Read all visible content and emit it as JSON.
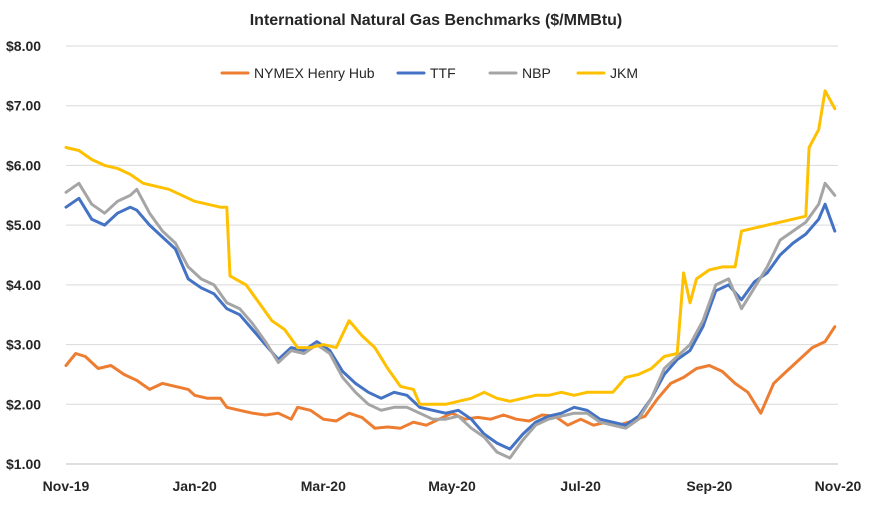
{
  "chart_data": {
    "type": "line",
    "title": "International Natural Gas Benchmarks ($/MMBtu)",
    "xlabel": "",
    "ylabel": "",
    "ylim": [
      1.0,
      8.0
    ],
    "yticks": [
      "$1.00",
      "$2.00",
      "$3.00",
      "$4.00",
      "$5.00",
      "$6.00",
      "$7.00",
      "$8.00"
    ],
    "xlim": [
      0,
      12
    ],
    "xticks": [
      {
        "x": 0,
        "label": "Nov-19"
      },
      {
        "x": 2,
        "label": "Jan-20"
      },
      {
        "x": 4,
        "label": "Mar-20"
      },
      {
        "x": 6,
        "label": "May-20"
      },
      {
        "x": 8,
        "label": "Jul-20"
      },
      {
        "x": 10,
        "label": "Sep-20"
      },
      {
        "x": 12,
        "label": "Nov-20"
      }
    ],
    "grid": true,
    "legend_position": "top",
    "series": [
      {
        "name": "NYMEX Henry Hub",
        "color": "#ed7d31",
        "points": [
          [
            0,
            2.65
          ],
          [
            0.15,
            2.85
          ],
          [
            0.3,
            2.8
          ],
          [
            0.5,
            2.6
          ],
          [
            0.7,
            2.65
          ],
          [
            0.9,
            2.5
          ],
          [
            1.1,
            2.4
          ],
          [
            1.3,
            2.25
          ],
          [
            1.5,
            2.35
          ],
          [
            1.7,
            2.3
          ],
          [
            1.9,
            2.25
          ],
          [
            2.0,
            2.15
          ],
          [
            2.2,
            2.1
          ],
          [
            2.4,
            2.1
          ],
          [
            2.5,
            1.95
          ],
          [
            2.7,
            1.9
          ],
          [
            2.9,
            1.85
          ],
          [
            3.1,
            1.82
          ],
          [
            3.3,
            1.85
          ],
          [
            3.5,
            1.75
          ],
          [
            3.6,
            1.95
          ],
          [
            3.8,
            1.9
          ],
          [
            4.0,
            1.75
          ],
          [
            4.2,
            1.72
          ],
          [
            4.4,
            1.85
          ],
          [
            4.6,
            1.78
          ],
          [
            4.8,
            1.6
          ],
          [
            5.0,
            1.62
          ],
          [
            5.2,
            1.6
          ],
          [
            5.4,
            1.7
          ],
          [
            5.6,
            1.65
          ],
          [
            5.8,
            1.75
          ],
          [
            6.0,
            1.85
          ],
          [
            6.2,
            1.75
          ],
          [
            6.4,
            1.78
          ],
          [
            6.6,
            1.75
          ],
          [
            6.8,
            1.82
          ],
          [
            7.0,
            1.75
          ],
          [
            7.2,
            1.72
          ],
          [
            7.4,
            1.82
          ],
          [
            7.6,
            1.8
          ],
          [
            7.8,
            1.65
          ],
          [
            8.0,
            1.75
          ],
          [
            8.2,
            1.65
          ],
          [
            8.4,
            1.7
          ],
          [
            8.6,
            1.65
          ],
          [
            8.8,
            1.72
          ],
          [
            9.0,
            1.8
          ],
          [
            9.2,
            2.1
          ],
          [
            9.4,
            2.35
          ],
          [
            9.6,
            2.45
          ],
          [
            9.8,
            2.6
          ],
          [
            10.0,
            2.65
          ],
          [
            10.2,
            2.55
          ],
          [
            10.4,
            2.35
          ],
          [
            10.6,
            2.2
          ],
          [
            10.8,
            1.85
          ],
          [
            11.0,
            2.35
          ],
          [
            11.2,
            2.55
          ],
          [
            11.4,
            2.75
          ],
          [
            11.6,
            2.95
          ],
          [
            11.8,
            3.05
          ],
          [
            11.95,
            3.3
          ]
        ]
      },
      {
        "name": "TTF",
        "color": "#4472c4",
        "points": [
          [
            0,
            5.3
          ],
          [
            0.2,
            5.45
          ],
          [
            0.4,
            5.1
          ],
          [
            0.6,
            5.0
          ],
          [
            0.8,
            5.2
          ],
          [
            1.0,
            5.3
          ],
          [
            1.1,
            5.25
          ],
          [
            1.3,
            5.0
          ],
          [
            1.5,
            4.8
          ],
          [
            1.7,
            4.6
          ],
          [
            1.9,
            4.1
          ],
          [
            2.1,
            3.95
          ],
          [
            2.3,
            3.85
          ],
          [
            2.5,
            3.6
          ],
          [
            2.7,
            3.5
          ],
          [
            2.9,
            3.25
          ],
          [
            3.1,
            3.0
          ],
          [
            3.3,
            2.75
          ],
          [
            3.5,
            2.95
          ],
          [
            3.7,
            2.9
          ],
          [
            3.9,
            3.05
          ],
          [
            4.1,
            2.9
          ],
          [
            4.3,
            2.55
          ],
          [
            4.5,
            2.35
          ],
          [
            4.7,
            2.2
          ],
          [
            4.9,
            2.1
          ],
          [
            5.1,
            2.2
          ],
          [
            5.3,
            2.15
          ],
          [
            5.5,
            1.95
          ],
          [
            5.7,
            1.9
          ],
          [
            5.9,
            1.85
          ],
          [
            6.1,
            1.9
          ],
          [
            6.3,
            1.75
          ],
          [
            6.5,
            1.5
          ],
          [
            6.7,
            1.35
          ],
          [
            6.9,
            1.25
          ],
          [
            7.1,
            1.5
          ],
          [
            7.3,
            1.7
          ],
          [
            7.5,
            1.8
          ],
          [
            7.7,
            1.85
          ],
          [
            7.9,
            1.95
          ],
          [
            8.1,
            1.9
          ],
          [
            8.3,
            1.75
          ],
          [
            8.5,
            1.7
          ],
          [
            8.7,
            1.65
          ],
          [
            8.9,
            1.8
          ],
          [
            9.1,
            2.1
          ],
          [
            9.3,
            2.5
          ],
          [
            9.5,
            2.75
          ],
          [
            9.7,
            2.9
          ],
          [
            9.9,
            3.3
          ],
          [
            10.1,
            3.9
          ],
          [
            10.3,
            4.0
          ],
          [
            10.5,
            3.75
          ],
          [
            10.7,
            4.05
          ],
          [
            10.9,
            4.2
          ],
          [
            11.1,
            4.5
          ],
          [
            11.3,
            4.7
          ],
          [
            11.5,
            4.85
          ],
          [
            11.7,
            5.1
          ],
          [
            11.8,
            5.35
          ],
          [
            11.95,
            4.9
          ]
        ]
      },
      {
        "name": "NBP",
        "color": "#a5a5a5",
        "points": [
          [
            0,
            5.55
          ],
          [
            0.2,
            5.7
          ],
          [
            0.4,
            5.35
          ],
          [
            0.6,
            5.2
          ],
          [
            0.8,
            5.4
          ],
          [
            1.0,
            5.5
          ],
          [
            1.1,
            5.6
          ],
          [
            1.3,
            5.2
          ],
          [
            1.5,
            4.9
          ],
          [
            1.7,
            4.7
          ],
          [
            1.9,
            4.3
          ],
          [
            2.1,
            4.1
          ],
          [
            2.3,
            4.0
          ],
          [
            2.5,
            3.7
          ],
          [
            2.7,
            3.6
          ],
          [
            2.9,
            3.35
          ],
          [
            3.1,
            3.05
          ],
          [
            3.3,
            2.7
          ],
          [
            3.5,
            2.9
          ],
          [
            3.7,
            2.85
          ],
          [
            3.9,
            3.0
          ],
          [
            4.1,
            2.85
          ],
          [
            4.3,
            2.45
          ],
          [
            4.5,
            2.2
          ],
          [
            4.7,
            2.0
          ],
          [
            4.9,
            1.9
          ],
          [
            5.1,
            1.95
          ],
          [
            5.3,
            1.95
          ],
          [
            5.5,
            1.85
          ],
          [
            5.7,
            1.75
          ],
          [
            5.9,
            1.75
          ],
          [
            6.1,
            1.8
          ],
          [
            6.3,
            1.6
          ],
          [
            6.5,
            1.45
          ],
          [
            6.7,
            1.2
          ],
          [
            6.9,
            1.1
          ],
          [
            7.1,
            1.4
          ],
          [
            7.3,
            1.65
          ],
          [
            7.5,
            1.75
          ],
          [
            7.7,
            1.8
          ],
          [
            7.9,
            1.85
          ],
          [
            8.1,
            1.85
          ],
          [
            8.3,
            1.7
          ],
          [
            8.5,
            1.65
          ],
          [
            8.7,
            1.6
          ],
          [
            8.9,
            1.75
          ],
          [
            9.1,
            2.1
          ],
          [
            9.3,
            2.6
          ],
          [
            9.5,
            2.8
          ],
          [
            9.7,
            3.0
          ],
          [
            9.9,
            3.4
          ],
          [
            10.1,
            4.0
          ],
          [
            10.3,
            4.1
          ],
          [
            10.5,
            3.6
          ],
          [
            10.7,
            3.95
          ],
          [
            10.9,
            4.3
          ],
          [
            11.1,
            4.75
          ],
          [
            11.3,
            4.9
          ],
          [
            11.5,
            5.05
          ],
          [
            11.7,
            5.35
          ],
          [
            11.8,
            5.7
          ],
          [
            11.95,
            5.5
          ]
        ]
      },
      {
        "name": "JKM",
        "color": "#ffc000",
        "points": [
          [
            0,
            6.3
          ],
          [
            0.2,
            6.25
          ],
          [
            0.4,
            6.1
          ],
          [
            0.6,
            6.0
          ],
          [
            0.8,
            5.95
          ],
          [
            1.0,
            5.85
          ],
          [
            1.2,
            5.7
          ],
          [
            1.4,
            5.65
          ],
          [
            1.6,
            5.6
          ],
          [
            1.8,
            5.5
          ],
          [
            2.0,
            5.4
          ],
          [
            2.2,
            5.35
          ],
          [
            2.4,
            5.3
          ],
          [
            2.5,
            5.3
          ],
          [
            2.55,
            4.15
          ],
          [
            2.8,
            4.0
          ],
          [
            3.0,
            3.7
          ],
          [
            3.2,
            3.4
          ],
          [
            3.4,
            3.25
          ],
          [
            3.6,
            2.95
          ],
          [
            3.8,
            2.95
          ],
          [
            4.0,
            3.0
          ],
          [
            4.2,
            2.95
          ],
          [
            4.4,
            3.4
          ],
          [
            4.6,
            3.15
          ],
          [
            4.8,
            2.95
          ],
          [
            5.0,
            2.6
          ],
          [
            5.2,
            2.3
          ],
          [
            5.4,
            2.25
          ],
          [
            5.5,
            2.0
          ],
          [
            5.7,
            2.0
          ],
          [
            5.9,
            2.0
          ],
          [
            6.1,
            2.05
          ],
          [
            6.3,
            2.1
          ],
          [
            6.5,
            2.2
          ],
          [
            6.7,
            2.1
          ],
          [
            6.9,
            2.05
          ],
          [
            7.1,
            2.1
          ],
          [
            7.3,
            2.15
          ],
          [
            7.5,
            2.15
          ],
          [
            7.7,
            2.2
          ],
          [
            7.9,
            2.15
          ],
          [
            8.1,
            2.2
          ],
          [
            8.3,
            2.2
          ],
          [
            8.5,
            2.2
          ],
          [
            8.7,
            2.45
          ],
          [
            8.9,
            2.5
          ],
          [
            9.1,
            2.6
          ],
          [
            9.3,
            2.8
          ],
          [
            9.5,
            2.85
          ],
          [
            9.6,
            4.2
          ],
          [
            9.7,
            3.7
          ],
          [
            9.8,
            4.1
          ],
          [
            10.0,
            4.25
          ],
          [
            10.2,
            4.3
          ],
          [
            10.4,
            4.3
          ],
          [
            10.5,
            4.9
          ],
          [
            10.7,
            4.95
          ],
          [
            10.9,
            5.0
          ],
          [
            11.1,
            5.05
          ],
          [
            11.3,
            5.1
          ],
          [
            11.5,
            5.15
          ],
          [
            11.55,
            6.3
          ],
          [
            11.7,
            6.6
          ],
          [
            11.8,
            7.25
          ],
          [
            11.9,
            7.05
          ],
          [
            11.95,
            6.95
          ]
        ]
      }
    ]
  }
}
